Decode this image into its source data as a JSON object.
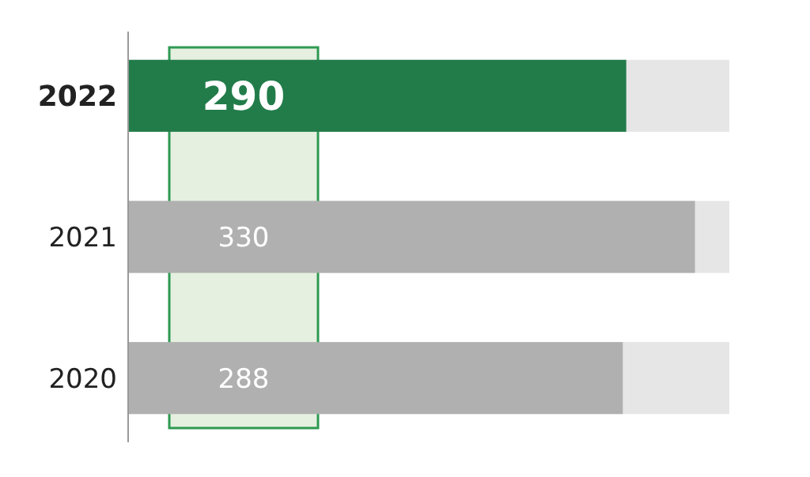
{
  "chart_data": {
    "type": "bar",
    "orientation": "horizontal",
    "categories": [
      "2022",
      "2021",
      "2020"
    ],
    "values": [
      290,
      330,
      288
    ],
    "colors": [
      "#227c4a",
      "#b0b0b0",
      "#b0b0b0"
    ],
    "xlim": [
      0,
      350
    ],
    "data_labels": true,
    "tick_labels": "y"
  }
}
